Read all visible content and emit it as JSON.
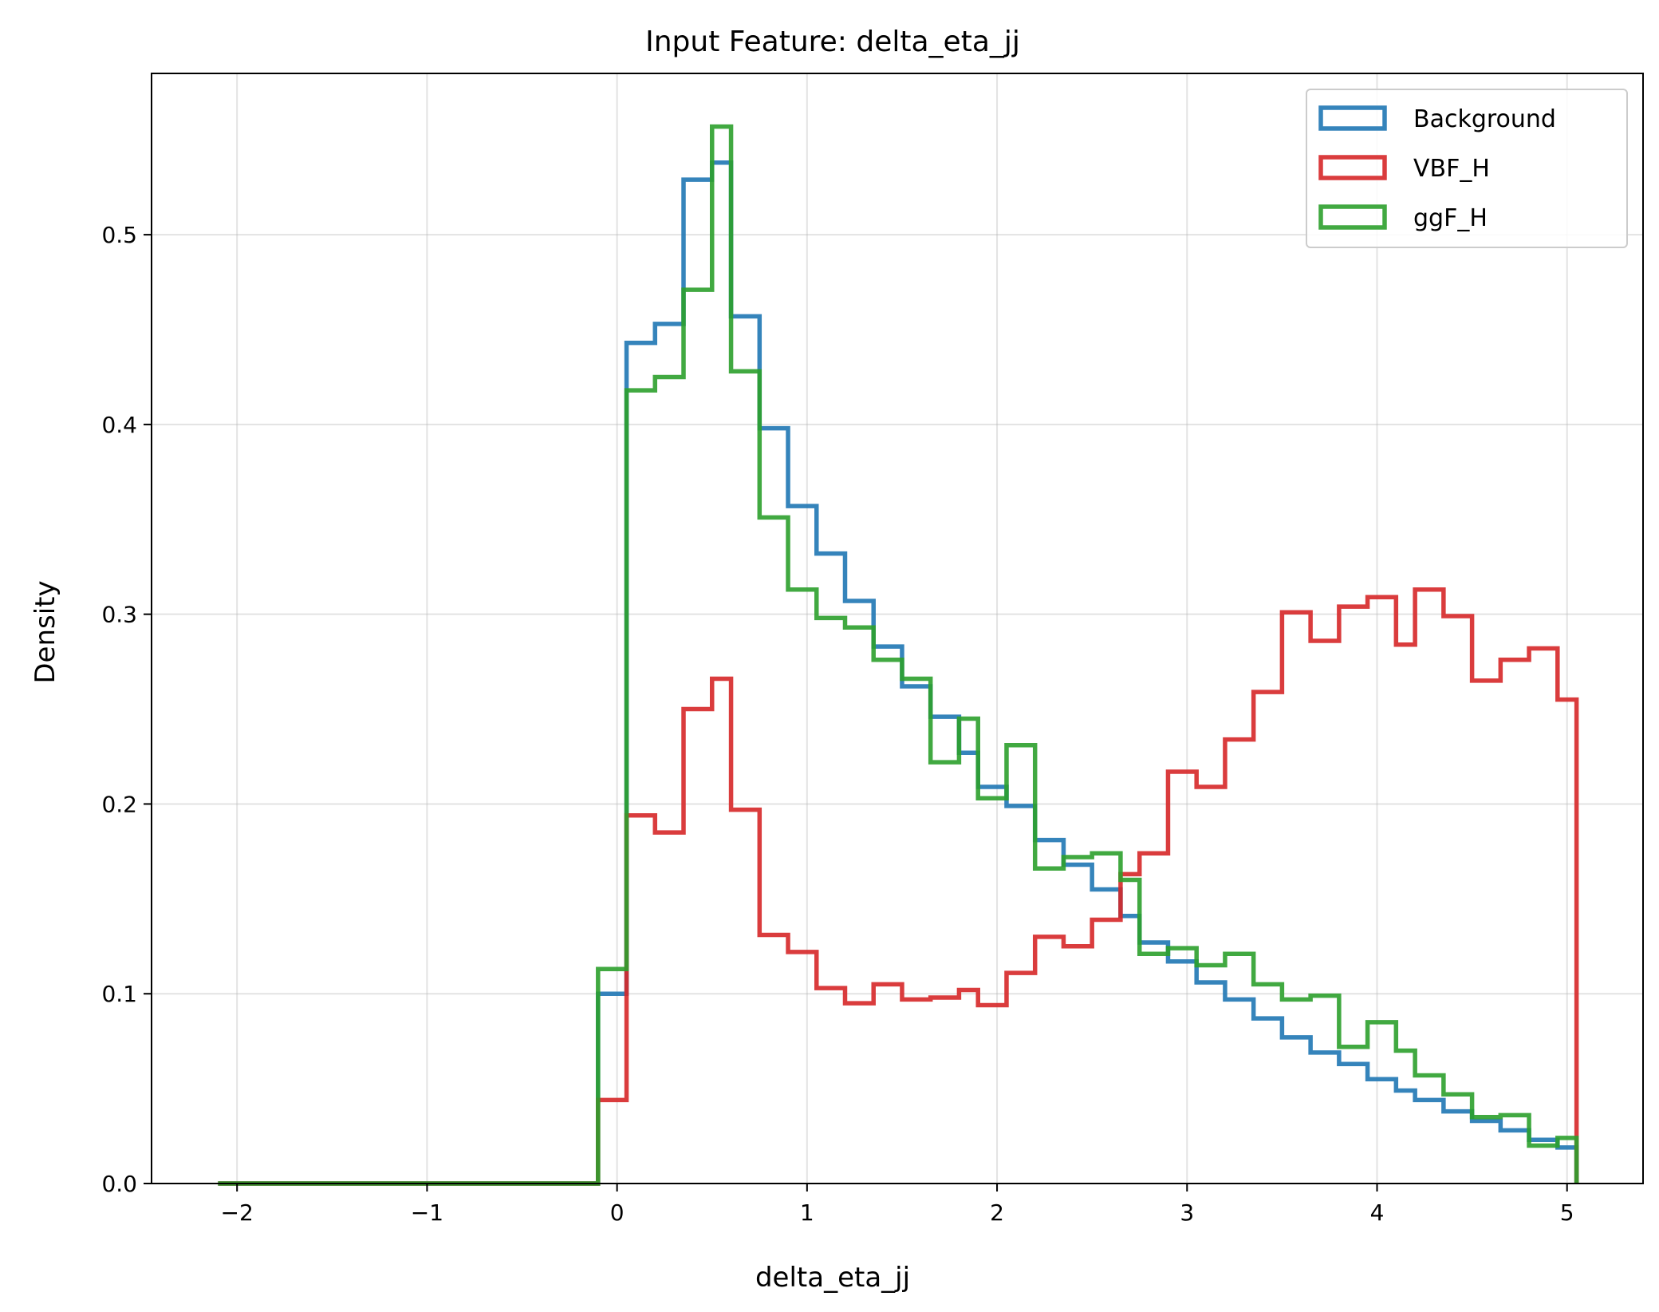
{
  "chart_data": {
    "type": "histogram",
    "title": "Input Feature: delta_eta_jj",
    "xlabel": "delta_eta_jj",
    "ylabel": "Density",
    "xlim": [
      -2.45,
      5.4
    ],
    "ylim": [
      0.0,
      0.585
    ],
    "xticks": [
      -2,
      -1,
      0,
      1,
      2,
      3,
      4,
      5
    ],
    "xtick_labels": [
      "−2",
      "−1",
      "0",
      "1",
      "2",
      "3",
      "4",
      "5"
    ],
    "yticks": [
      0.0,
      0.1,
      0.2,
      0.3,
      0.4,
      0.5
    ],
    "ytick_labels": [
      "0.0",
      "0.1",
      "0.2",
      "0.3",
      "0.4",
      "0.5"
    ],
    "grid": true,
    "legend_position": "top-right",
    "histtype": "step",
    "bin_range": [
      -2.1,
      5.05
    ],
    "bin_edges_from_data": [
      -0.1,
      0.05,
      0.2,
      0.35,
      0.5,
      0.6,
      0.75,
      0.9,
      1.05,
      1.2,
      1.35,
      1.5,
      1.65,
      1.8,
      1.9,
      2.05,
      2.2,
      2.35,
      2.5,
      2.65,
      2.75,
      2.9,
      3.05,
      3.2,
      3.35,
      3.5,
      3.65,
      3.8,
      3.95,
      4.1,
      4.2,
      4.35,
      4.5,
      4.65,
      4.8,
      4.95,
      5.05
    ],
    "series": [
      {
        "name": "Background",
        "color": "#1f77b4",
        "values": [
          0.1,
          0.443,
          0.453,
          0.529,
          0.538,
          0.457,
          0.398,
          0.357,
          0.332,
          0.307,
          0.283,
          0.262,
          0.246,
          0.227,
          0.209,
          0.199,
          0.181,
          0.168,
          0.155,
          0.141,
          0.127,
          0.117,
          0.106,
          0.097,
          0.087,
          0.077,
          0.069,
          0.063,
          0.055,
          0.049,
          0.044,
          0.038,
          0.033,
          0.028,
          0.023,
          0.019
        ]
      },
      {
        "name": "VBF_H",
        "color": "#d62728",
        "values": [
          0.044,
          0.194,
          0.185,
          0.25,
          0.266,
          0.197,
          0.131,
          0.122,
          0.103,
          0.095,
          0.105,
          0.097,
          0.098,
          0.102,
          0.094,
          0.111,
          0.13,
          0.125,
          0.139,
          0.163,
          0.174,
          0.217,
          0.209,
          0.234,
          0.259,
          0.301,
          0.286,
          0.304,
          0.309,
          0.284,
          0.313,
          0.299,
          0.265,
          0.276,
          0.282,
          0.255
        ]
      },
      {
        "name": "ggF_H",
        "color": "#2ca02c",
        "values": [
          0.113,
          0.418,
          0.425,
          0.471,
          0.557,
          0.428,
          0.351,
          0.313,
          0.298,
          0.293,
          0.276,
          0.266,
          0.222,
          0.245,
          0.203,
          0.231,
          0.166,
          0.172,
          0.174,
          0.16,
          0.121,
          0.124,
          0.115,
          0.121,
          0.105,
          0.097,
          0.099,
          0.072,
          0.085,
          0.07,
          0.057,
          0.047,
          0.035,
          0.036,
          0.02,
          0.024
        ]
      }
    ]
  }
}
